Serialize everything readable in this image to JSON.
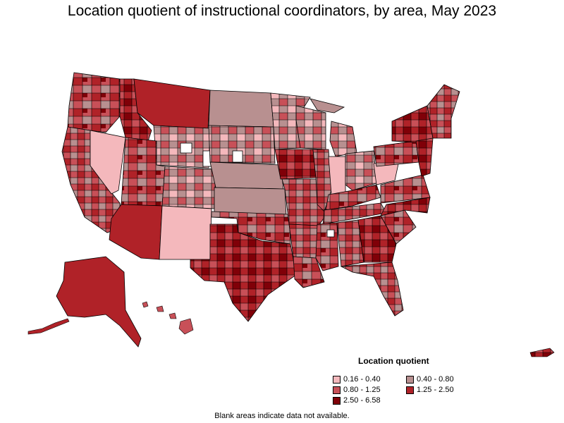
{
  "title": "Location quotient of instructional coordinators, by area, May 2023",
  "legend": {
    "title": "Location quotient",
    "items": [
      {
        "label": "0.16 - 0.40",
        "color": "#f4b8bc"
      },
      {
        "label": "0.40 - 0.80",
        "color": "#b89090"
      },
      {
        "label": "0.80 - 1.25",
        "color": "#c85058"
      },
      {
        "label": "1.25 - 2.50",
        "color": "#b02228"
      },
      {
        "label": "2.50 - 6.58",
        "color": "#800008"
      }
    ]
  },
  "footnote": "Blank areas indicate data not available.",
  "colors": {
    "border": "#000000",
    "blank": "#ffffff"
  }
}
